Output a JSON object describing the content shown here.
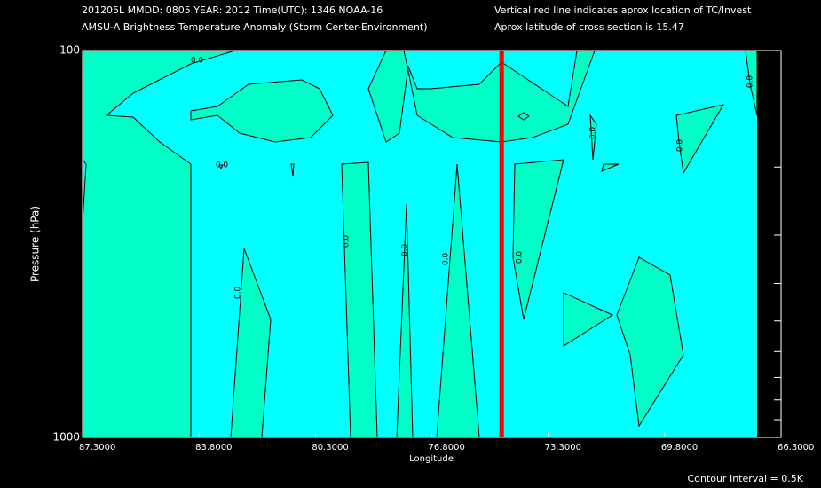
{
  "header": {
    "line1": "201205L  MMDD: 0805 YEAR: 2012 Time(UTC): 1346 NOAA-16",
    "line2": "AMSU-A Brightness Temperature Anomaly (Storm Center-Environment)",
    "note1": "Vertical red line indicates aprox location of TC/Invest",
    "note2": "Aprox latitude of cross section is 15.47"
  },
  "chart_data": {
    "type": "contour",
    "x_label": "Longitude",
    "y_label": "Pressure (hPa)",
    "xlim": [
      87.3,
      66.3
    ],
    "xticks": [
      {
        "value": 87.3,
        "label": "87.3000"
      },
      {
        "value": 83.8,
        "label": "83.8000"
      },
      {
        "value": 80.3,
        "label": "80.3000"
      },
      {
        "value": 76.8,
        "label": "76.8000"
      },
      {
        "value": 73.3,
        "label": "73.3000"
      },
      {
        "value": 69.8,
        "label": "69.8000"
      },
      {
        "value": 66.3,
        "label": "66.3000"
      }
    ],
    "ylim": [
      1000,
      100
    ],
    "log_y": true,
    "yticks": [
      100,
      1000
    ],
    "minor_yticks": [
      200,
      300,
      400,
      500,
      600,
      700,
      800,
      900
    ],
    "storm_longitude": 74.7,
    "storm_line_color": "#ff0000",
    "background_color": "#00ffff",
    "fill_color": "#00ffc6",
    "contour_labels": [
      "0.0",
      "0.0",
      "0.0",
      "0.0",
      "0.0",
      "0.0",
      "0.0",
      "0.0",
      "0.0",
      "0.0"
    ],
    "contour_interval": "Contour Interval = 0.5K"
  }
}
